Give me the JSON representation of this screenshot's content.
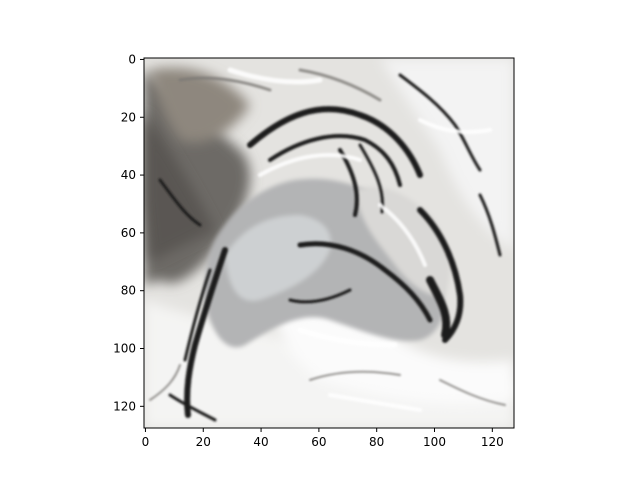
{
  "chart_data": {
    "type": "heatmap",
    "title": "",
    "xlabel": "",
    "ylabel": "",
    "image_shape": [
      128,
      128
    ],
    "colormap": "gray",
    "xlim": [
      -0.5,
      127.5
    ],
    "ylim": [
      127.5,
      -0.5
    ],
    "y_inverted": true,
    "x_ticks": [
      0,
      20,
      40,
      60,
      80,
      100,
      120
    ],
    "y_ticks": [
      0,
      20,
      40,
      60,
      80,
      100,
      120
    ],
    "x_tick_labels": [
      "0",
      "20",
      "40",
      "60",
      "80",
      "100",
      "120"
    ],
    "y_tick_labels": [
      "0",
      "20",
      "40",
      "60",
      "80",
      "100",
      "120"
    ],
    "grid": false,
    "legend": false,
    "colors": {
      "axis": "#000000",
      "background": "#ffffff"
    }
  }
}
